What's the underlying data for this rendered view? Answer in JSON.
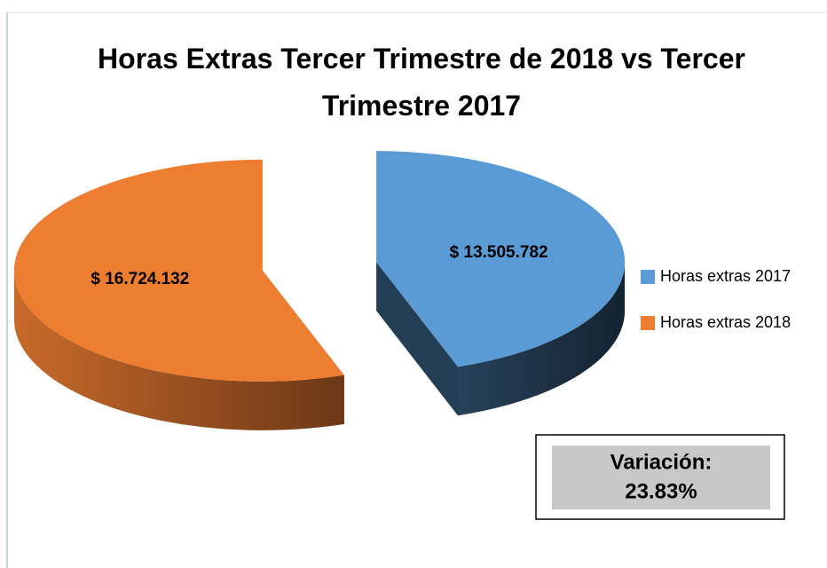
{
  "chart_data": {
    "type": "pie",
    "title": "Horas Extras Tercer Trimestre de 2018 vs Tercer Trimestre 2017",
    "categories": [
      "Horas extras 2017",
      "Horas extras 2018"
    ],
    "values": [
      13505782,
      16724132
    ],
    "value_labels": [
      "$ 13.505.782",
      "$ 16.724.132"
    ],
    "colors": [
      "#5b9bd5",
      "#ed7d31"
    ],
    "legend": "right",
    "annotations": [
      "Variación:",
      "23.83%"
    ]
  }
}
